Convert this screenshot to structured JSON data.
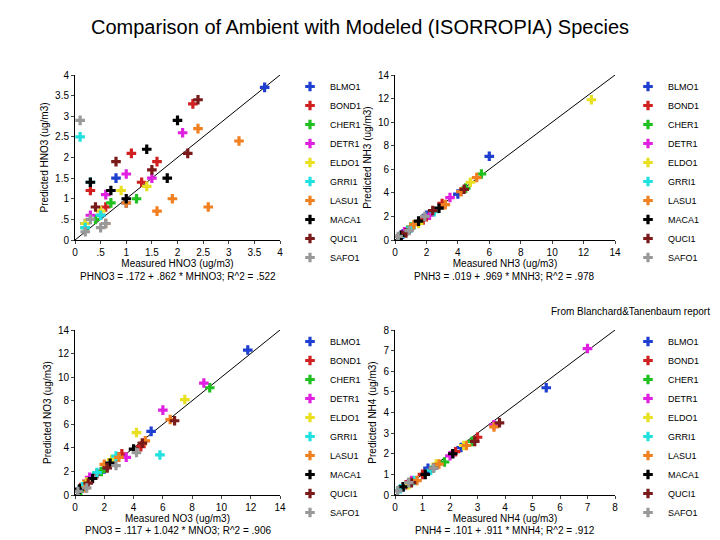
{
  "title": "Comparison of Ambient with Modeled (ISORROPIA) Species",
  "note": "From Blanchard&Tanenbaum report",
  "chart_data": [
    {
      "type": "scatter",
      "marker": "cross",
      "grid": false,
      "x_label": "Measured HNO3 (ug/m3)",
      "y_label": "Predicted HNO3 (ug/m3)",
      "annotation": "PHNO3 = .172 + .862 * MHNO3; R^2 = .522",
      "xlim": [
        0,
        4
      ],
      "ylim": [
        0,
        4
      ],
      "xticks": [
        0,
        {
          "value": 0.5,
          "label": ".5"
        },
        1,
        1.5,
        2,
        2.5,
        3,
        3.5,
        4
      ],
      "yticks": [
        0,
        {
          "value": 0.5,
          "label": ".5"
        },
        1,
        1.5,
        2,
        2.5,
        3,
        3.5,
        4
      ],
      "series": [
        {
          "name": "BLMO1",
          "color": "#1f3fd0",
          "x": [
            0.2,
            0.5,
            0.8,
            1.0,
            3.7
          ],
          "y": [
            0.4,
            0.6,
            1.5,
            0.9,
            3.7
          ]
        },
        {
          "name": "BOND1",
          "color": "#d02020",
          "x": [
            0.3,
            0.6,
            1.1,
            1.3,
            1.6,
            2.3
          ],
          "y": [
            1.2,
            0.8,
            2.1,
            1.4,
            1.9,
            3.3
          ]
        },
        {
          "name": "CHER1",
          "color": "#20c020",
          "x": [
            0.2,
            0.4,
            0.7,
            1.2
          ],
          "y": [
            0.3,
            0.5,
            0.9,
            1.0
          ]
        },
        {
          "name": "DETR1",
          "color": "#e020e0",
          "x": [
            0.3,
            0.6,
            1.0,
            1.5,
            2.1
          ],
          "y": [
            0.6,
            1.1,
            1.6,
            1.5,
            2.6
          ]
        },
        {
          "name": "ELDO1",
          "color": "#e8e020",
          "x": [
            0.2,
            0.5,
            0.9,
            1.4
          ],
          "y": [
            0.4,
            0.7,
            1.2,
            1.3
          ]
        },
        {
          "name": "GRRI1",
          "color": "#20e0e0",
          "x": [
            0.1,
            0.2,
            0.3,
            0.5
          ],
          "y": [
            2.5,
            0.3,
            1.4,
            0.6
          ]
        },
        {
          "name": "LASU1",
          "color": "#f08020",
          "x": [
            0.6,
            1.0,
            1.6,
            1.9,
            2.4,
            2.6,
            3.2
          ],
          "y": [
            0.4,
            0.9,
            0.7,
            1.0,
            2.7,
            0.8,
            2.4
          ]
        },
        {
          "name": "MACA1",
          "color": "#000000",
          "x": [
            0.3,
            0.7,
            1.0,
            1.4,
            1.8,
            2.0
          ],
          "y": [
            1.4,
            1.2,
            1.0,
            2.2,
            1.5,
            2.9
          ]
        },
        {
          "name": "QUCI1",
          "color": "#7a1a1a",
          "x": [
            0.4,
            0.8,
            1.5,
            2.2,
            2.4
          ],
          "y": [
            0.8,
            1.9,
            1.7,
            2.1,
            3.4
          ]
        },
        {
          "name": "SAFO1",
          "color": "#999999",
          "x": [
            0.1,
            0.2,
            0.3,
            0.5,
            0.6
          ],
          "y": [
            2.9,
            0.2,
            0.5,
            0.3,
            0.4
          ]
        }
      ]
    },
    {
      "type": "scatter",
      "marker": "cross",
      "grid": false,
      "x_label": "Measured NH3 (ug/m3)",
      "y_label": "Predicted NH3 (ug/m3)",
      "annotation": "PNH3 = .019 + .969 * MNH3; R^2 = .978",
      "xlim": [
        0,
        14
      ],
      "ylim": [
        0,
        14
      ],
      "xticks": [
        0,
        2,
        4,
        6,
        8,
        10,
        12,
        14
      ],
      "yticks": [
        0,
        2,
        4,
        6,
        8,
        10,
        12,
        14
      ],
      "series": [
        {
          "name": "BLMO1",
          "color": "#1f3fd0",
          "x": [
            0.5,
            2.0,
            4.0,
            6.0
          ],
          "y": [
            0.5,
            2.1,
            3.9,
            7.1
          ]
        },
        {
          "name": "BOND1",
          "color": "#d02020",
          "x": [
            0.8,
            1.8,
            3.0
          ],
          "y": [
            0.8,
            1.7,
            3.1
          ]
        },
        {
          "name": "CHER1",
          "color": "#20c020",
          "x": [
            1.0,
            4.5,
            5.5
          ],
          "y": [
            1.1,
            4.4,
            5.6
          ]
        },
        {
          "name": "DETR1",
          "color": "#e020e0",
          "x": [
            0.6,
            2.2,
            3.5
          ],
          "y": [
            0.7,
            2.1,
            3.6
          ]
        },
        {
          "name": "ELDO1",
          "color": "#e8e020",
          "x": [
            1.5,
            4.8,
            12.5
          ],
          "y": [
            1.4,
            4.9,
            11.9
          ]
        },
        {
          "name": "GRRI1",
          "color": "#20e0e0",
          "x": [
            0.3,
            1.0,
            2.5
          ],
          "y": [
            0.3,
            1.0,
            2.4
          ]
        },
        {
          "name": "LASU1",
          "color": "#f08020",
          "x": [
            1.2,
            3.2,
            4.2,
            5.2
          ],
          "y": [
            1.3,
            3.0,
            4.1,
            5.3
          ]
        },
        {
          "name": "MACA1",
          "color": "#000000",
          "x": [
            0.4,
            1.5,
            2.8
          ],
          "y": [
            0.4,
            1.6,
            2.7
          ]
        },
        {
          "name": "QUCI1",
          "color": "#7a1a1a",
          "x": [
            0.7,
            2.4,
            4.4
          ],
          "y": [
            0.6,
            2.5,
            4.3
          ]
        },
        {
          "name": "SAFO1",
          "color": "#999999",
          "x": [
            0.2,
            0.9,
            1.9
          ],
          "y": [
            0.3,
            0.8,
            2.0
          ]
        }
      ]
    },
    {
      "type": "scatter",
      "marker": "cross",
      "grid": false,
      "x_label": "Measured NO3 (ug/m3)",
      "y_label": "Predicted NO3 (ug/m3)",
      "annotation": "PNO3 = .117 + 1.042 * MNO3; R^2 = .906",
      "xlim": [
        0,
        14
      ],
      "ylim": [
        0,
        14
      ],
      "xticks": [
        0,
        2,
        4,
        6,
        8,
        10,
        12,
        14
      ],
      "yticks": [
        0,
        2,
        4,
        6,
        8,
        10,
        12,
        14
      ],
      "series": [
        {
          "name": "BLMO1",
          "color": "#1f3fd0",
          "x": [
            0.5,
            2.0,
            5.2,
            11.8
          ],
          "y": [
            0.6,
            2.2,
            5.4,
            12.3
          ]
        },
        {
          "name": "BOND1",
          "color": "#d02020",
          "x": [
            0.6,
            1.5,
            3.2,
            4.5
          ],
          "y": [
            0.9,
            1.8,
            3.5,
            4.1
          ]
        },
        {
          "name": "CHER1",
          "color": "#20c020",
          "x": [
            0.4,
            1.8,
            9.2
          ],
          "y": [
            0.4,
            2.0,
            9.1
          ]
        },
        {
          "name": "DETR1",
          "color": "#e020e0",
          "x": [
            1.0,
            3.5,
            6.0,
            8.8
          ],
          "y": [
            1.5,
            3.2,
            7.2,
            9.5
          ]
        },
        {
          "name": "ELDO1",
          "color": "#e8e020",
          "x": [
            0.8,
            2.5,
            4.2,
            7.5
          ],
          "y": [
            1.1,
            3.0,
            5.3,
            8.1
          ]
        },
        {
          "name": "GRRI1",
          "color": "#20e0e0",
          "x": [
            0.5,
            1.5,
            2.8,
            5.8
          ],
          "y": [
            0.7,
            1.9,
            3.3,
            3.4
          ]
        },
        {
          "name": "LASU1",
          "color": "#f08020",
          "x": [
            0.7,
            2.0,
            3.0,
            4.8,
            6.5
          ],
          "y": [
            0.6,
            2.6,
            3.2,
            4.6,
            6.4
          ]
        },
        {
          "name": "MACA1",
          "color": "#000000",
          "x": [
            0.3,
            1.2,
            2.4,
            4.0
          ],
          "y": [
            0.5,
            1.4,
            2.7,
            3.9
          ]
        },
        {
          "name": "QUCI1",
          "color": "#7a1a1a",
          "x": [
            0.9,
            2.2,
            4.6,
            6.8
          ],
          "y": [
            1.0,
            2.3,
            4.4,
            6.3
          ]
        },
        {
          "name": "SAFO1",
          "color": "#999999",
          "x": [
            0.2,
            0.8,
            2.8,
            4.2
          ],
          "y": [
            0.3,
            0.6,
            2.5,
            3.6
          ]
        }
      ]
    },
    {
      "type": "scatter",
      "marker": "cross",
      "grid": false,
      "x_label": "Measured NH4 (ug/m3)",
      "y_label": "Predicted NH4 (ug/m3)",
      "annotation": "PNH4 = .101 + .911 * MNH4; R^2 = .912",
      "xlim": [
        0,
        8
      ],
      "ylim": [
        0,
        8
      ],
      "xticks": [
        0,
        1,
        2,
        3,
        4,
        5,
        6,
        7,
        8
      ],
      "yticks": [
        0,
        1,
        2,
        3,
        4,
        5,
        6,
        7,
        8
      ],
      "series": [
        {
          "name": "BLMO1",
          "color": "#1f3fd0",
          "x": [
            0.3,
            1.2,
            2.4,
            5.5
          ],
          "y": [
            0.4,
            1.3,
            2.3,
            5.2
          ]
        },
        {
          "name": "BOND1",
          "color": "#d02020",
          "x": [
            0.4,
            1.0,
            2.2,
            3.0
          ],
          "y": [
            0.5,
            1.0,
            2.1,
            2.8
          ]
        },
        {
          "name": "CHER1",
          "color": "#20c020",
          "x": [
            0.5,
            1.8,
            2.8
          ],
          "y": [
            0.6,
            1.6,
            2.6
          ]
        },
        {
          "name": "DETR1",
          "color": "#e020e0",
          "x": [
            0.6,
            2.0,
            3.6,
            7.0
          ],
          "y": [
            0.7,
            1.9,
            3.4,
            7.1
          ]
        },
        {
          "name": "ELDO1",
          "color": "#e8e020",
          "x": [
            0.5,
            1.5,
            2.5
          ],
          "y": [
            0.5,
            1.5,
            2.4
          ]
        },
        {
          "name": "GRRI1",
          "color": "#20e0e0",
          "x": [
            0.2,
            0.7,
            1.3
          ],
          "y": [
            0.3,
            0.7,
            1.2
          ]
        },
        {
          "name": "LASU1",
          "color": "#f08020",
          "x": [
            0.8,
            1.6,
            2.6,
            3.6
          ],
          "y": [
            0.7,
            1.5,
            2.4,
            3.3
          ]
        },
        {
          "name": "MACA1",
          "color": "#000000",
          "x": [
            0.3,
            1.1,
            2.1
          ],
          "y": [
            0.4,
            1.0,
            2.0
          ]
        },
        {
          "name": "QUCI1",
          "color": "#7a1a1a",
          "x": [
            0.6,
            1.4,
            2.9,
            3.8
          ],
          "y": [
            0.6,
            1.3,
            2.6,
            3.5
          ]
        },
        {
          "name": "SAFO1",
          "color": "#999999",
          "x": [
            0.1,
            0.5,
            1.4
          ],
          "y": [
            0.2,
            0.6,
            1.3
          ]
        }
      ]
    }
  ]
}
